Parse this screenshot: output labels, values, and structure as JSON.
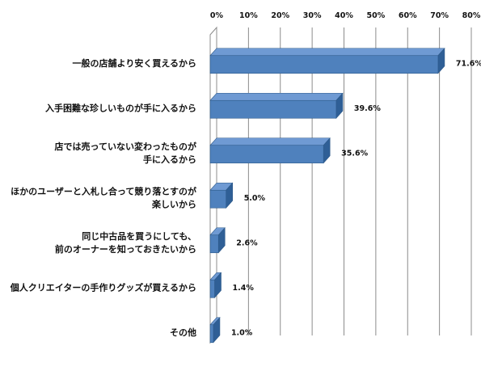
{
  "chart_data": {
    "type": "bar",
    "orientation": "horizontal",
    "style": "3d",
    "categories": [
      [
        "一般の店舗より安く買えるから"
      ],
      [
        "入手困難な珍しいものが手に入るから"
      ],
      [
        "店では売っていない変わったものが",
        "手に入るから"
      ],
      [
        "ほかのユーザーと入札し合って競り落とすのが",
        "楽しいから"
      ],
      [
        "同じ中古品を買うにしても、",
        "前のオーナーを知っておきたいから"
      ],
      [
        "個人クリエイターの手作りグッズが買えるから"
      ],
      [
        "その他"
      ]
    ],
    "values": [
      71.6,
      39.6,
      35.6,
      5.0,
      2.6,
      1.4,
      1.0
    ],
    "value_labels": [
      "71.6%",
      "39.6%",
      "35.6%",
      "5.0%",
      "2.6%",
      "1.4%",
      "1.0%"
    ],
    "xlim": [
      0,
      80
    ],
    "x_ticks": [
      0,
      10,
      20,
      30,
      40,
      50,
      60,
      70,
      80
    ],
    "x_tick_labels": [
      "0%",
      "10%",
      "20%",
      "30%",
      "40%",
      "50%",
      "60%",
      "70%",
      "80%"
    ],
    "x_axis_position": "top",
    "grid": true,
    "legend": "none",
    "colors": {
      "bar_front": "#4f81bd",
      "bar_top": "#6f9ad3",
      "bar_side": "#2f5f96",
      "grid": "#8c8c8c"
    }
  }
}
